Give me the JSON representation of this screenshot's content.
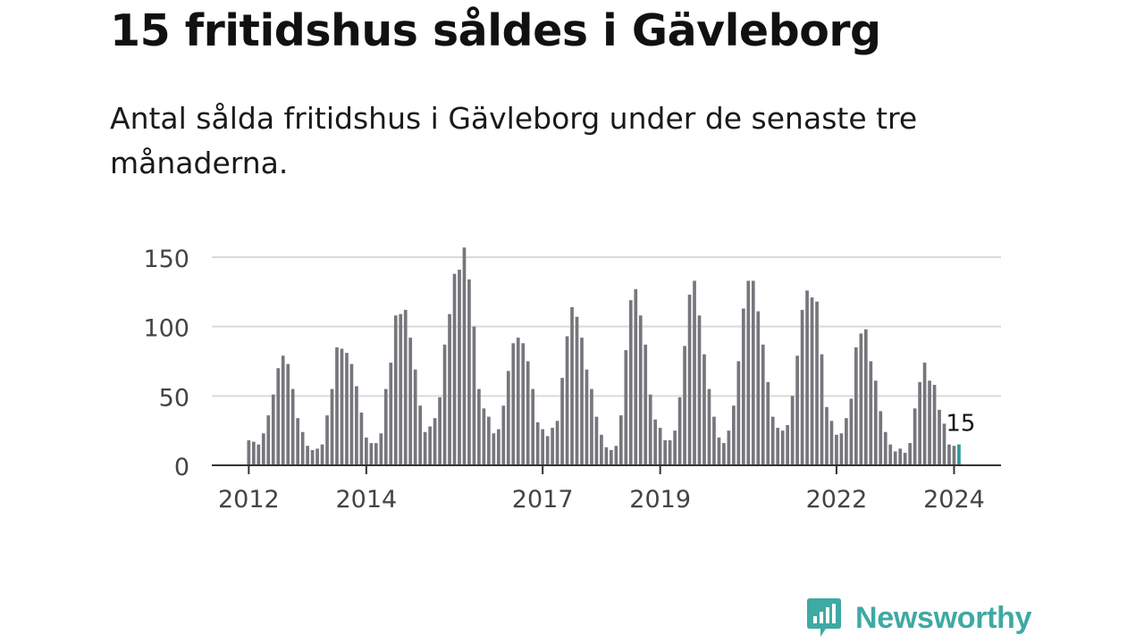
{
  "title": "15 fritidshus såldes i Gävleborg",
  "subtitle": "Antal sålda fritidshus i Gävleborg under de senaste tre månaderna.",
  "brand": {
    "name": "Newsworthy",
    "icon": "chart-bubble-icon"
  },
  "chart_data": {
    "type": "bar",
    "start": "2012-01",
    "frequency": "monthly",
    "ylim": [
      0,
      150
    ],
    "yticks": [
      0,
      50,
      100,
      150
    ],
    "grid": true,
    "xtick_labels": [
      "2012",
      "2014",
      "2017",
      "2019",
      "2022",
      "2024"
    ],
    "xtick_dates": [
      "2012-01",
      "2014-01",
      "2017-01",
      "2019-01",
      "2022-01",
      "2024-01"
    ],
    "values": [
      18,
      17,
      15,
      23,
      36,
      51,
      70,
      79,
      73,
      55,
      34,
      24,
      14,
      11,
      12,
      15,
      36,
      55,
      85,
      84,
      81,
      73,
      57,
      38,
      20,
      16,
      16,
      23,
      55,
      74,
      108,
      109,
      112,
      92,
      69,
      43,
      24,
      28,
      34,
      49,
      87,
      109,
      138,
      141,
      157,
      134,
      100,
      55,
      41,
      35,
      23,
      26,
      43,
      68,
      88,
      92,
      88,
      75,
      55,
      31,
      26,
      21,
      27,
      32,
      63,
      93,
      114,
      107,
      92,
      69,
      55,
      35,
      22,
      13,
      11,
      14,
      36,
      83,
      119,
      127,
      108,
      87,
      51,
      33,
      27,
      18,
      18,
      25,
      49,
      86,
      123,
      133,
      108,
      80,
      55,
      35,
      20,
      16,
      25,
      43,
      75,
      113,
      133,
      133,
      111,
      87,
      60,
      35,
      27,
      25,
      29,
      50,
      79,
      112,
      126,
      121,
      118,
      80,
      42,
      32,
      22,
      23,
      34,
      48,
      85,
      95,
      98,
      75,
      61,
      39,
      24,
      15,
      10,
      12,
      9,
      16,
      41,
      60,
      74,
      61,
      58,
      40,
      30,
      15,
      14,
      15
    ],
    "highlight": {
      "label": "15",
      "value": 15,
      "color": "#2a9a98"
    },
    "bar_color": "#77767c"
  }
}
